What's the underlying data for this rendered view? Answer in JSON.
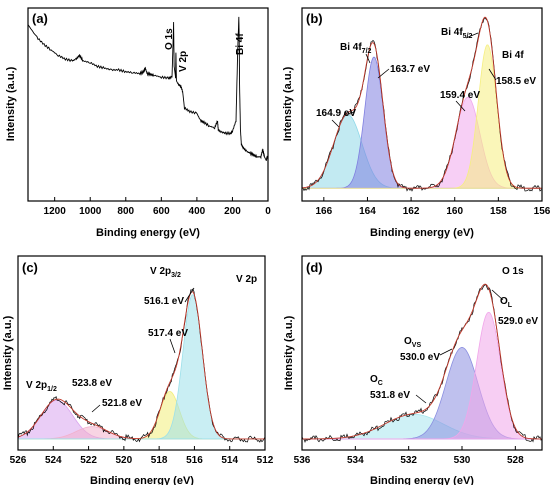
{
  "figure_title": "",
  "chart_data": [
    {
      "type": "line",
      "panel": "(a)",
      "xlabel": "Binding energy (eV)",
      "ylabel": "Intensity (a.u.)",
      "xlim": [
        1350,
        0
      ],
      "x_reversed": true,
      "xticks": [
        1200,
        1000,
        800,
        600,
        400,
        200,
        0
      ],
      "grid": false,
      "series": [
        {
          "values_x": [
            1350,
            1300,
            1260,
            1220,
            1180,
            1140,
            1100,
            1080,
            1060,
            1040,
            1000,
            960,
            920,
            880,
            840,
            800,
            760,
            720,
            700,
            690,
            680,
            660,
            640,
            600,
            560,
            540,
            535,
            531,
            528,
            520,
            518,
            515,
            505,
            490,
            480,
            470,
            440,
            400,
            380,
            360,
            330,
            300,
            284,
            280,
            270,
            240,
            210,
            200,
            180,
            170,
            164,
            162,
            160,
            155,
            150,
            140,
            120,
            100,
            80,
            60,
            40,
            30,
            20,
            10,
            5,
            0
          ],
          "values_y": [
            0.93,
            0.86,
            0.82,
            0.79,
            0.76,
            0.74,
            0.73,
            0.74,
            0.76,
            0.73,
            0.72,
            0.7,
            0.69,
            0.68,
            0.68,
            0.67,
            0.665,
            0.66,
            0.67,
            0.69,
            0.66,
            0.655,
            0.65,
            0.64,
            0.635,
            0.64,
            0.8,
            0.94,
            0.7,
            0.64,
            0.78,
            0.62,
            0.6,
            0.59,
            0.56,
            0.47,
            0.45,
            0.44,
            0.4,
            0.39,
            0.37,
            0.36,
            0.4,
            0.35,
            0.34,
            0.33,
            0.33,
            0.34,
            0.4,
            0.8,
            0.97,
            0.86,
            0.6,
            0.35,
            0.27,
            0.25,
            0.23,
            0.22,
            0.21,
            0.2,
            0.2,
            0.24,
            0.2,
            0.18,
            0.2,
            0.19
          ]
        }
      ],
      "annotations": [
        {
          "text": "O 1s",
          "x": 531
        },
        {
          "text": "V 2p",
          "x": 517
        },
        {
          "text": "Bi 4f",
          "x": 162
        }
      ]
    },
    {
      "type": "line",
      "panel": "(b)",
      "xlabel": "Binding energy (eV)",
      "ylabel": "Intensity (a.u.)",
      "xlim": [
        167,
        156
      ],
      "x_reversed": true,
      "xticks": [
        166,
        164,
        162,
        160,
        158,
        156
      ],
      "grid": false,
      "title": "Bi 4f",
      "peaks": [
        {
          "label": "164.9 eV",
          "center": 164.9,
          "amp": 0.42,
          "sigma": 0.65,
          "color": "#8fd8e8"
        },
        {
          "label": "163.7 eV",
          "center": 163.7,
          "amp": 0.75,
          "sigma": 0.42,
          "color": "#7f7fe0"
        },
        {
          "label": "159.4 eV",
          "center": 159.4,
          "amp": 0.52,
          "sigma": 0.55,
          "color": "#f0a8ec"
        },
        {
          "label": "158.5 eV",
          "center": 158.5,
          "amp": 0.82,
          "sigma": 0.42,
          "color": "#f5ef80"
        }
      ],
      "baseline": 0.05,
      "group_labels": [
        "Bi 4f",
        "7/2",
        "Bi 4f",
        "5/2"
      ]
    },
    {
      "type": "line",
      "panel": "(c)",
      "xlabel": "Binding energy (eV)",
      "ylabel": "Intensity (a.u.)",
      "xlim": [
        526,
        512
      ],
      "x_reversed": true,
      "xticks": [
        526,
        524,
        522,
        520,
        518,
        516,
        514,
        512
      ],
      "grid": false,
      "title": "V 2p",
      "peaks": [
        {
          "label": "523.8 eV",
          "center": 523.8,
          "amp": 0.22,
          "sigma": 0.9,
          "color": "#d9a4ee"
        },
        {
          "label": "521.8 eV",
          "center": 521.8,
          "amp": 0.07,
          "sigma": 0.9,
          "color": "#f2b0cc"
        },
        {
          "label": "517.4 eV",
          "center": 517.4,
          "amp": 0.27,
          "sigma": 0.55,
          "color": "#f2ee7a"
        },
        {
          "label": "516.1 eV",
          "center": 516.1,
          "amp": 0.82,
          "sigma": 0.55,
          "color": "#9ce0ea"
        }
      ],
      "baseline": 0.04,
      "group_labels": [
        "V 2p",
        "1/2",
        "V 2p",
        "3/2"
      ]
    },
    {
      "type": "line",
      "panel": "(d)",
      "xlabel": "Binding energy (eV)",
      "ylabel": "Intensity (a.u.)",
      "xlim": [
        536,
        527
      ],
      "x_reversed": true,
      "xticks": [
        536,
        534,
        532,
        530,
        528
      ],
      "grid": false,
      "title": "O 1s",
      "peaks": [
        {
          "label": "531.8 eV",
          "center": 531.8,
          "amp": 0.14,
          "sigma": 1.1,
          "color": "#a8e6ee"
        },
        {
          "label": "530.0 eV",
          "center": 530.0,
          "amp": 0.52,
          "sigma": 0.6,
          "color": "#8a8ee0"
        },
        {
          "label": "529.0 eV",
          "center": 529.0,
          "amp": 0.72,
          "sigma": 0.45,
          "color": "#f1a6ea"
        }
      ],
      "baseline": 0.04,
      "group_labels": [
        "O",
        "C",
        "O",
        "VS",
        "O",
        "L"
      ]
    }
  ]
}
